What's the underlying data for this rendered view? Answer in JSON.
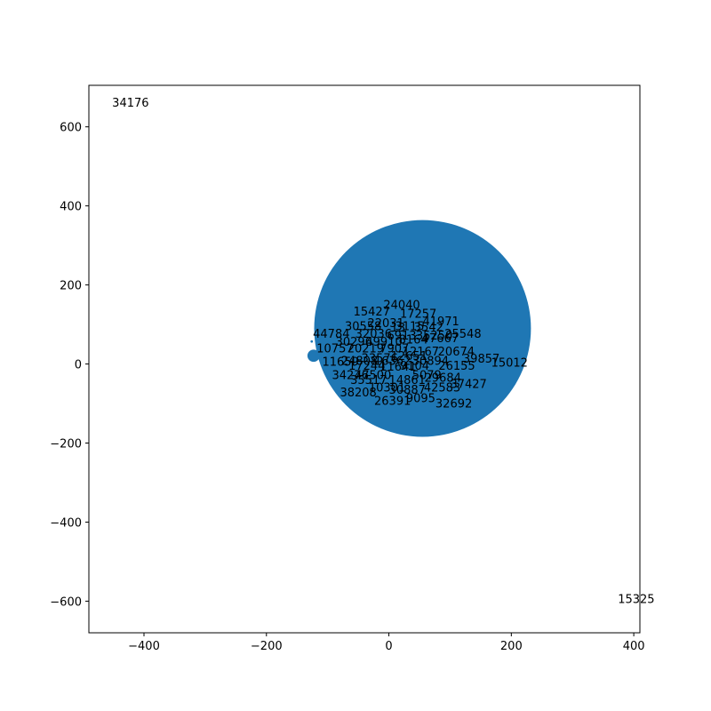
{
  "chart_data": {
    "type": "scatter",
    "title": "",
    "xlabel": "",
    "ylabel": "",
    "xlim": [
      -490,
      410
    ],
    "ylim": [
      -680,
      705
    ],
    "xticks": [
      -400,
      -200,
      0,
      200,
      400
    ],
    "yticks": [
      -600,
      -400,
      -200,
      0,
      200,
      400,
      600
    ],
    "xtick_labels": [
      "−400",
      "−200",
      "0",
      "200",
      "400"
    ],
    "ytick_labels": [
      "−600",
      "−400",
      "−200",
      "0",
      "200",
      "400",
      "600"
    ],
    "grid": false,
    "marker_color": "#1f77b4",
    "bubbles": [
      {
        "x": 55,
        "y": 90,
        "radius": 177
      },
      {
        "x": -123,
        "y": 21,
        "radius": 10
      },
      {
        "x": -126,
        "y": 57,
        "radius": 2
      }
    ],
    "labels": [
      {
        "text": "34176",
        "x": -452,
        "y": 651
      },
      {
        "text": "15325",
        "x": 374,
        "y": -605
      },
      {
        "text": "24040",
        "x": -9,
        "y": 140
      },
      {
        "text": "15427",
        "x": -58,
        "y": 123
      },
      {
        "text": "17257",
        "x": 18,
        "y": 117
      },
      {
        "text": "41971",
        "x": 55,
        "y": 98
      },
      {
        "text": "30558",
        "x": -72,
        "y": 86
      },
      {
        "text": "22031",
        "x": -35,
        "y": 93
      },
      {
        "text": "13",
        "x": 3,
        "y": 82
      },
      {
        "text": "3115",
        "x": 10,
        "y": 86
      },
      {
        "text": "3542",
        "x": 41,
        "y": 83
      },
      {
        "text": "25548",
        "x": 91,
        "y": 67
      },
      {
        "text": "44784",
        "x": -124,
        "y": 67
      },
      {
        "text": "32036",
        "x": -55,
        "y": 66
      },
      {
        "text": "6913",
        "x": -3,
        "y": 62
      },
      {
        "text": "35250",
        "x": 44,
        "y": 62
      },
      {
        "text": "30296",
        "x": -87,
        "y": 46
      },
      {
        "text": "49910",
        "x": -38,
        "y": 46
      },
      {
        "text": "8164",
        "x": 16,
        "y": 52
      },
      {
        "text": "47667",
        "x": 54,
        "y": 55
      },
      {
        "text": "10757",
        "x": -118,
        "y": 29
      },
      {
        "text": "20219",
        "x": -68,
        "y": 29
      },
      {
        "text": "7907",
        "x": -15,
        "y": 29
      },
      {
        "text": "12167",
        "x": 22,
        "y": 22
      },
      {
        "text": "20674",
        "x": 80,
        "y": 22
      },
      {
        "text": "12651",
        "x": 3,
        "y": 10
      },
      {
        "text": "33576",
        "x": -45,
        "y": 5
      },
      {
        "text": "39857",
        "x": 121,
        "y": 3
      },
      {
        "text": "15012",
        "x": 167,
        "y": -7
      },
      {
        "text": "11659",
        "x": -109,
        "y": -4
      },
      {
        "text": "24808",
        "x": -78,
        "y": -2
      },
      {
        "text": "16362",
        "x": -24,
        "y": -2
      },
      {
        "text": "30894",
        "x": 38,
        "y": -2
      },
      {
        "text": "17244",
        "x": -66,
        "y": -14
      },
      {
        "text": "11641",
        "x": -15,
        "y": -17
      },
      {
        "text": "9104",
        "x": 18,
        "y": -14
      },
      {
        "text": "26155",
        "x": 81,
        "y": -14
      },
      {
        "text": "34276",
        "x": -93,
        "y": -38
      },
      {
        "text": "47500",
        "x": -56,
        "y": -38
      },
      {
        "text": "5079",
        "x": 38,
        "y": -38
      },
      {
        "text": "35517",
        "x": -63,
        "y": -50
      },
      {
        "text": "14861",
        "x": 0,
        "y": -50
      },
      {
        "text": "29684",
        "x": 58,
        "y": -45
      },
      {
        "text": "10301",
        "x": -33,
        "y": -70
      },
      {
        "text": "30887",
        "x": 0,
        "y": -75
      },
      {
        "text": "42583",
        "x": 57,
        "y": -70
      },
      {
        "text": "37427",
        "x": 100,
        "y": -61
      },
      {
        "text": "38208",
        "x": -80,
        "y": -82
      },
      {
        "text": "26391",
        "x": -24,
        "y": -103
      },
      {
        "text": "9095",
        "x": 28,
        "y": -97
      },
      {
        "text": "32692",
        "x": 76,
        "y": -110
      }
    ]
  }
}
